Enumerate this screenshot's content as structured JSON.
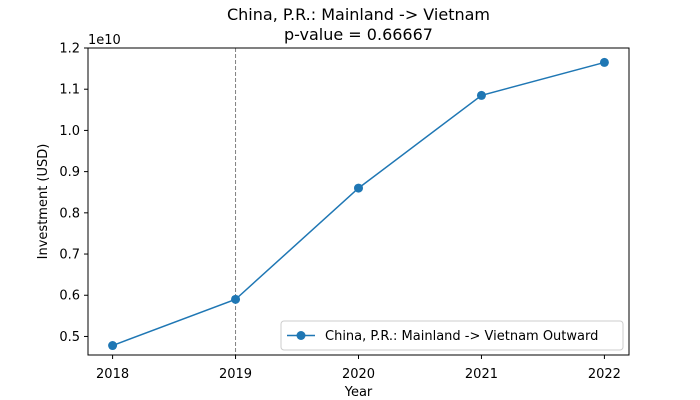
{
  "chart_data": {
    "type": "line",
    "title": "China, P.R.: Mainland -> Vietnam",
    "subtitle": "p-value = 0.66667",
    "xlabel": "Year",
    "ylabel": "Investment (USD)",
    "y_offset_label": "1e10",
    "x": [
      2018,
      2019,
      2020,
      2021,
      2022
    ],
    "xlim": [
      2017.8,
      2022.2
    ],
    "ylim": [
      0.455,
      1.2
    ],
    "y_unit_scale": 10000000000,
    "yticks": [
      0.5,
      0.6,
      0.7,
      0.8,
      0.9,
      1.0,
      1.1,
      1.2
    ],
    "series": [
      {
        "name": "China, P.R.: Mainland -> Vietnam Outward",
        "values": [
          4780000000,
          5900000000,
          8600000000,
          10850000000,
          11650000000
        ],
        "color": "#1f77b4",
        "marker": "circle"
      }
    ],
    "vline": {
      "x": 2019,
      "style": "dashed",
      "color": "#808080"
    },
    "legend_position": "lower-right",
    "grid": false
  }
}
